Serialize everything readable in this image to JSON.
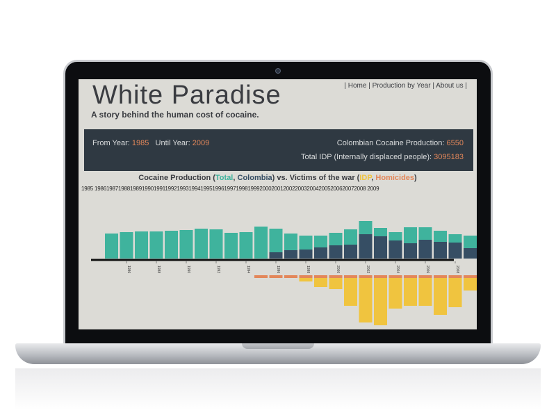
{
  "app": {
    "title": "White Paradise",
    "subtitle": "A story behind the human cost of cocaine."
  },
  "nav": {
    "home": "| Home |",
    "production": "Production by Year",
    "about": "| About us |"
  },
  "filter": {
    "from_label": "From Year:",
    "from_value": "1985",
    "until_label": "Until Year:",
    "until_value": "2009",
    "production_label": "Colombian Cocaine Production:",
    "production_value": "6550",
    "idp_label": "Total IDP (Internally displaced people):",
    "idp_value": "3095183"
  },
  "chart_heading": {
    "prefix": "Cocaine Production (",
    "total": "Total",
    "sep1": ", ",
    "colombia": "Colombia",
    "middle": ") vs. Victims of the war (",
    "idp": "IDP",
    "sep2": ", ",
    "homicides": "Homicides",
    "suffix": ")"
  },
  "year_list": "1985 19861987198819891990199119921993199419951996199719981999200020012002200320042005200620072008 2009",
  "colors": {
    "total": "#3fb39d",
    "colombia": "#364e64",
    "idp": "#f0c43f",
    "homicides": "#e3875a",
    "panel": "#2f3942",
    "screen_bg": "#dcdbd6"
  },
  "chart_data": {
    "type": "bar",
    "years": [
      1985,
      1986,
      1987,
      1988,
      1989,
      1990,
      1991,
      1992,
      1993,
      1994,
      1995,
      1996,
      1997,
      1998,
      1999,
      2000,
      2001,
      2002,
      2003,
      2004,
      2005,
      2006,
      2007,
      2008,
      2009
    ],
    "tick_labels": [
      "1986",
      "1988",
      "1990",
      "1992",
      "1994",
      "1996",
      "1998",
      "2000",
      "2002",
      "2004",
      "2006",
      "2008"
    ],
    "series": [
      {
        "name": "Total",
        "values": [
          36,
          38,
          39,
          39,
          40,
          41,
          43,
          42,
          37,
          38,
          46,
          43,
          36,
          33,
          33,
          37,
          42,
          54,
          44,
          38,
          45,
          45,
          40,
          35,
          33
        ]
      },
      {
        "name": "Colombia",
        "values": [
          0,
          0,
          0,
          0,
          0,
          0,
          0,
          0,
          0,
          0,
          0,
          9,
          12,
          13,
          16,
          19,
          20,
          35,
          32,
          26,
          22,
          27,
          24,
          23,
          15
        ]
      },
      {
        "name": "IDP",
        "values": [
          0,
          0,
          0,
          0,
          0,
          0,
          0,
          0,
          0,
          0,
          0,
          0,
          0,
          5,
          13,
          16,
          40,
          64,
          68,
          44,
          40,
          40,
          53,
          42,
          18
        ]
      },
      {
        "name": "Homicides",
        "values": [
          0,
          0,
          0,
          0,
          0,
          0,
          0,
          0,
          0,
          0,
          4,
          4,
          4,
          4,
          4,
          4,
          4,
          4,
          4,
          4,
          4,
          4,
          4,
          4,
          4
        ]
      }
    ]
  }
}
